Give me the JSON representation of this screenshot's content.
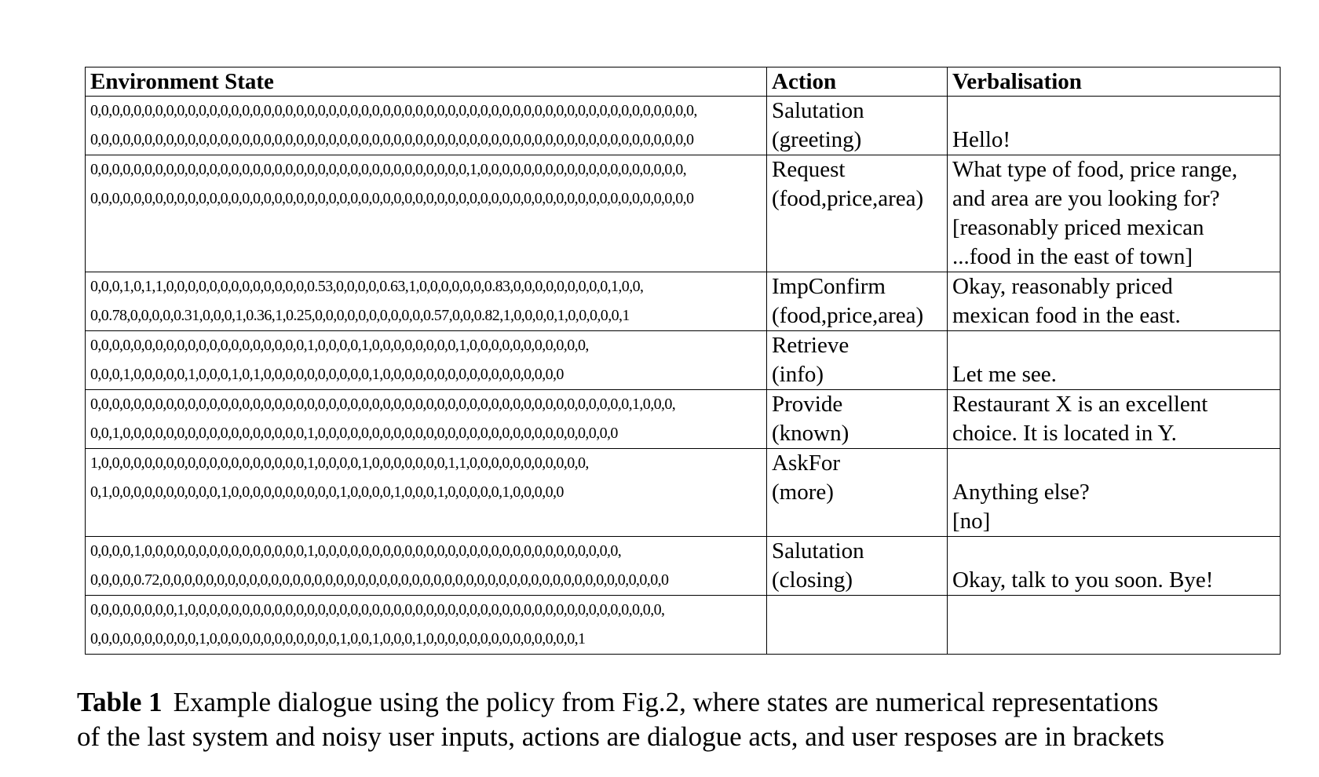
{
  "table": {
    "headers": [
      "Environment State",
      "Action",
      "Verbalisation"
    ],
    "rows": [
      {
        "state": [
          "0,0,0,0,0,0,0,0,0,0,0,0,0,0,0,0,0,0,0,0,0,0,0,0,0,0,0,0,0,0,0,0,0,0,0,0,0,0,0,0,0,0,0,0,0,0,0,0,0,0,0,0,0,0,0,0,",
          "0,0,0,0,0,0,0,0,0,0,0,0,0,0,0,0,0,0,0,0,0,0,0,0,0,0,0,0,0,0,0,0,0,0,0,0,0,0,0,0,0,0,0,0,0,0,0,0,0,0,0,0,0,0,0,0"
        ],
        "action": [
          "Salutation",
          "(greeting)"
        ],
        "verbalisation": [
          "",
          "Hello!"
        ]
      },
      {
        "state": [
          "0,0,0,0,0,0,0,0,0,0,0,0,0,0,0,0,0,0,0,0,0,0,0,0,0,0,0,0,0,0,0,0,0,0,0,1,0,0,0,0,0,0,0,0,0,0,0,0,0,0,0,0,0,0,0,",
          "0,0,0,0,0,0,0,0,0,0,0,0,0,0,0,0,0,0,0,0,0,0,0,0,0,0,0,0,0,0,0,0,0,0,0,0,0,0,0,0,0,0,0,0,0,0,0,0,0,0,0,0,0,0,0,0"
        ],
        "action": [
          "Request",
          "(food,price,area)"
        ],
        "verbalisation": [
          "What type of food, price range,",
          "and area are you looking for?",
          "[reasonably priced mexican",
          "...food in the east of town]"
        ]
      },
      {
        "state": [
          "0,0,0,1,0,1,1,0,0,0,0,0,0,0,0,0,0,0,0,0,0.53,0,0,0,0,0.63,1,0,0,0,0,0,0,0.83,0,0,0,0,0,0,0,0,0,1,0,0,",
          "0,0.78,0,0,0,0,0.31,0,0,0,1,0.36,1,0.25,0,0,0,0,0,0,0,0,0,0,0.57,0,0,0.82,1,0,0,0,0,1,0,0,0,0,0,1"
        ],
        "action": [
          "ImpConfirm",
          "(food,price,area)"
        ],
        "verbalisation": [
          "Okay, reasonably priced",
          "mexican food in the east."
        ]
      },
      {
        "state": [
          "0,0,0,0,0,0,0,0,0,0,0,0,0,0,0,0,0,0,0,0,1,0,0,0,0,1,0,0,0,0,0,0,0,0,1,0,0,0,0,0,0,0,0,0,0,0,",
          "0,0,0,1,0,0,0,0,0,1,0,0,0,1,0,1,0,0,0,0,0,0,0,0,0,0,1,0,0,0,0,0,0,0,0,0,0,0,0,0,0,0,0,0"
        ],
        "action": [
          "Retrieve",
          "(info)"
        ],
        "verbalisation": [
          "",
          "Let me see."
        ]
      },
      {
        "state": [
          "0,0,0,0,0,0,0,0,0,0,0,0,0,0,0,0,0,0,0,0,0,0,0,0,0,0,0,0,0,0,0,0,0,0,0,0,0,0,0,0,0,0,0,0,0,0,0,0,0,0,1,0,0,0,",
          "0,0,1,0,0,0,0,0,0,0,0,0,0,0,0,0,0,0,0,0,1,0,0,0,0,0,0,0,0,0,0,0,0,0,0,0,0,0,0,0,0,0,0,0,0,0,0,0,0"
        ],
        "action": [
          "Provide",
          "(known)"
        ],
        "verbalisation": [
          "Restaurant X is an excellent",
          "choice. It is located in Y."
        ]
      },
      {
        "state": [
          "1,0,0,0,0,0,0,0,0,0,0,0,0,0,0,0,0,0,0,0,1,0,0,0,0,1,0,0,0,0,0,0,0,1,1,0,0,0,0,0,0,0,0,0,0,0,",
          "0,1,0,0,0,0,0,0,0,0,0,0,1,0,0,0,0,0,0,0,0,0,0,1,0,0,0,0,1,0,0,0,1,0,0,0,0,0,1,0,0,0,0,0"
        ],
        "action": [
          "AskFor",
          "(more)"
        ],
        "verbalisation": [
          "",
          "Anything else?",
          "[no]"
        ]
      },
      {
        "state": [
          "0,0,0,0,1,0,0,0,0,0,0,0,0,0,0,0,0,0,0,0,1,0,0,0,0,0,0,0,0,0,0,0,0,0,0,0,0,0,0,0,0,0,0,0,0,0,0,0,0,",
          "0,0,0,0,0.72,0,0,0,0,0,0,0,0,0,0,0,0,0,0,0,0,0,0,0,0,0,0,0,0,0,0,0,0,0,0,0,0,0,0,0,0,0,0,0,0,0,0,0,0,0,0,0"
        ],
        "action": [
          "Salutation",
          "(closing)"
        ],
        "verbalisation": [
          "",
          "Okay, talk to you soon. Bye!"
        ]
      },
      {
        "state": [
          "0,0,0,0,0,0,0,0,1,0,0,0,0,0,0,0,0,0,0,0,0,0,0,0,0,0,0,0,0,0,0,0,0,0,0,0,0,0,0,0,0,0,0,0,0,0,0,0,0,0,0,0,0,",
          "0,0,0,0,0,0,0,0,0,0,1,0,0,0,0,0,0,0,0,0,0,0,0,1,0,0,1,0,0,0,1,0,0,0,0,0,0,0,0,0,0,0,0,0,0,1"
        ],
        "action": [],
        "verbalisation": []
      }
    ]
  },
  "caption": {
    "label": "Table 1",
    "line1": "Example dialogue using the policy from Fig.2, where states are numerical representations",
    "line2": "of the last system and noisy user inputs, actions are dialogue acts, and user resposes are in brackets"
  }
}
